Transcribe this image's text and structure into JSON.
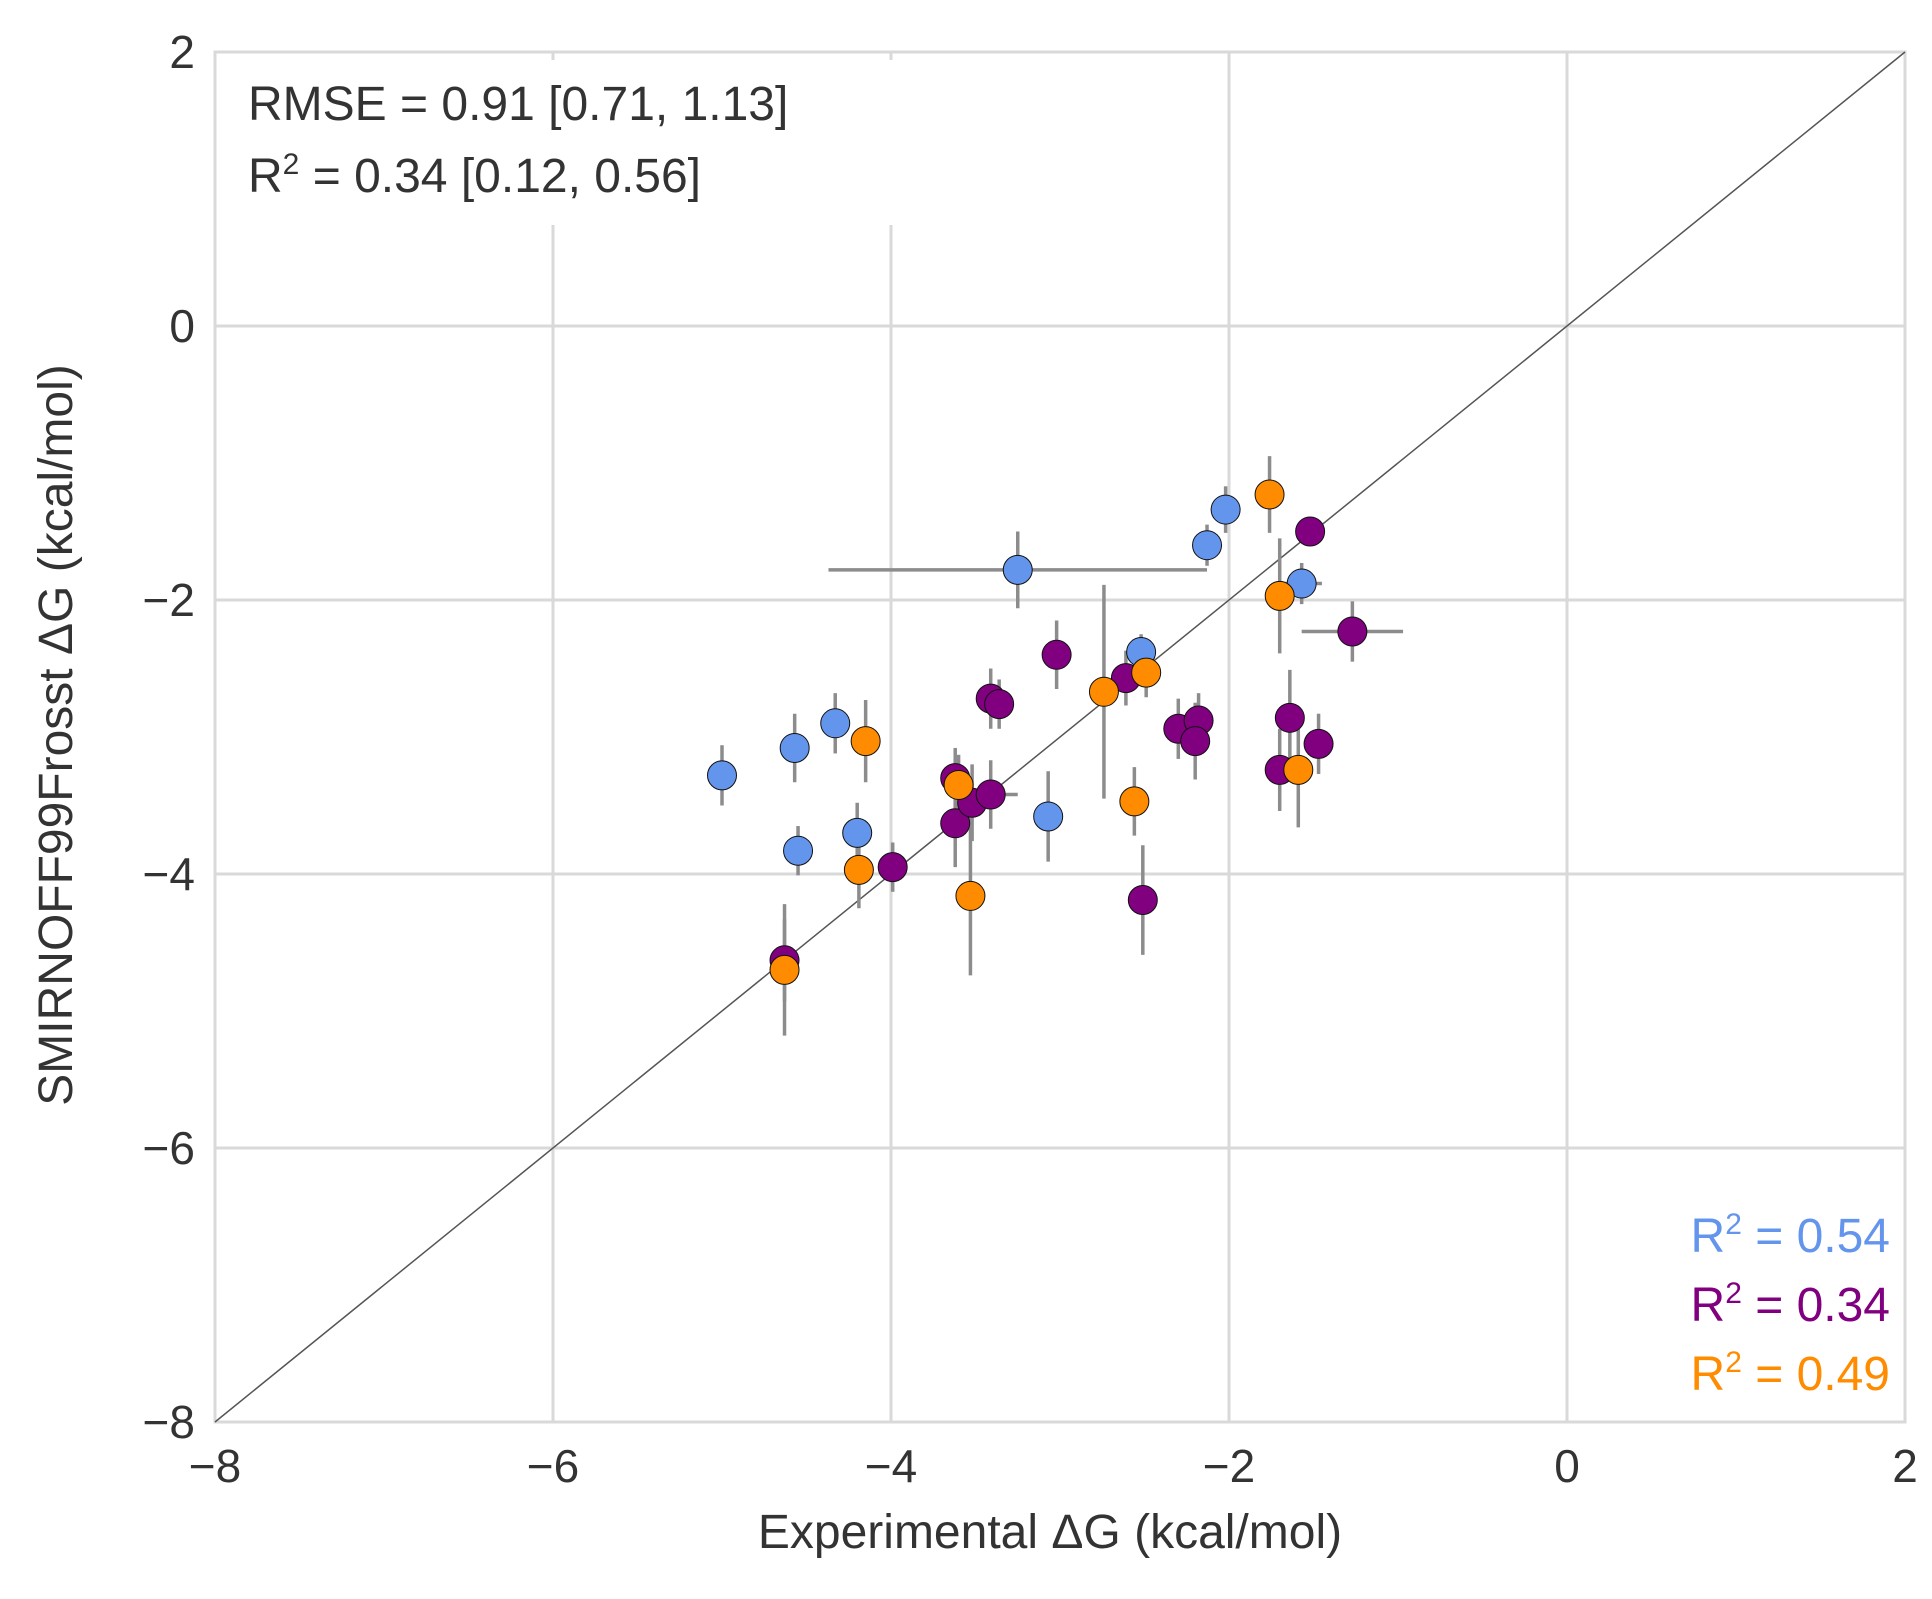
{
  "chart_data": {
    "type": "scatter",
    "xlabel": "Experimental ΔG (kcal/mol)",
    "ylabel": "SMIRNOFF99Frosst ΔG (kcal/mol)",
    "xlim": [
      -8,
      2
    ],
    "ylim": [
      -8,
      2
    ],
    "x_ticks": [
      -8,
      -6,
      -4,
      -2,
      0,
      2
    ],
    "y_ticks": [
      -8,
      -6,
      -4,
      -2,
      0,
      2
    ],
    "x_tick_labels": [
      "−8",
      "−6",
      "−4",
      "−2",
      "0",
      "2"
    ],
    "y_tick_labels": [
      "−8",
      "−6",
      "−4",
      "−2",
      "0",
      "2"
    ],
    "grid": true,
    "identity_line": true,
    "annotations": {
      "rmse_text": "RMSE = 0.91 [0.71, 1.13]",
      "r2_prefix": "R",
      "r2_sup": "2",
      "r2_text": " = 0.34 [0.12, 0.56]"
    },
    "legend_placement": "bottom-right",
    "series": [
      {
        "color": "#6495ED",
        "legend_prefix": "R",
        "legend_sup": "2",
        "legend_value": " = 0.54",
        "points": [
          {
            "x": -5.0,
            "y": -3.28,
            "xerr": 0.0,
            "yerr": 0.22
          },
          {
            "x": -4.57,
            "y": -3.08,
            "xerr": 0.0,
            "yerr": 0.25
          },
          {
            "x": -4.33,
            "y": -2.9,
            "xerr": 0.0,
            "yerr": 0.22
          },
          {
            "x": -4.55,
            "y": -3.83,
            "xerr": 0.0,
            "yerr": 0.18
          },
          {
            "x": -4.2,
            "y": -3.7,
            "xerr": 0.0,
            "yerr": 0.22
          },
          {
            "x": -3.25,
            "y": -1.78,
            "xerr": 1.12,
            "yerr": 0.28
          },
          {
            "x": -3.07,
            "y": -3.58,
            "xerr": 0.0,
            "yerr": 0.33
          },
          {
            "x": -2.52,
            "y": -2.38,
            "xerr": 0.0,
            "yerr": 0.13
          },
          {
            "x": -2.13,
            "y": -1.6,
            "xerr": 0.0,
            "yerr": 0.15
          },
          {
            "x": -2.02,
            "y": -1.34,
            "xerr": 0.0,
            "yerr": 0.17
          },
          {
            "x": -1.57,
            "y": -1.88,
            "xerr": 0.12,
            "yerr": 0.15
          }
        ]
      },
      {
        "color": "#800080",
        "legend_prefix": "R",
        "legend_sup": "2",
        "legend_value": " = 0.34",
        "points": [
          {
            "x": -4.63,
            "y": -4.63,
            "xerr": 0.0,
            "yerr": 0.3
          },
          {
            "x": -3.99,
            "y": -3.95,
            "xerr": 0.0,
            "yerr": 0.18
          },
          {
            "x": -3.62,
            "y": -3.3,
            "xerr": 0.0,
            "yerr": 0.22
          },
          {
            "x": -3.62,
            "y": -3.63,
            "xerr": 0.0,
            "yerr": 0.32
          },
          {
            "x": -3.52,
            "y": -3.48,
            "xerr": 0.0,
            "yerr": 0.28
          },
          {
            "x": -3.41,
            "y": -3.42,
            "xerr": 0.16,
            "yerr": 0.25
          },
          {
            "x": -3.41,
            "y": -2.72,
            "xerr": 0.0,
            "yerr": 0.22
          },
          {
            "x": -3.36,
            "y": -2.76,
            "xerr": 0.0,
            "yerr": 0.18
          },
          {
            "x": -3.02,
            "y": -2.4,
            "xerr": 0.0,
            "yerr": 0.25
          },
          {
            "x": -2.61,
            "y": -2.57,
            "xerr": 0.0,
            "yerr": 0.2
          },
          {
            "x": -2.51,
            "y": -4.19,
            "xerr": 0.0,
            "yerr": 0.4
          },
          {
            "x": -2.3,
            "y": -2.94,
            "xerr": 0.0,
            "yerr": 0.22
          },
          {
            "x": -2.18,
            "y": -2.88,
            "xerr": 0.0,
            "yerr": 0.2
          },
          {
            "x": -2.2,
            "y": -3.03,
            "xerr": 0.0,
            "yerr": 0.28
          },
          {
            "x": -1.7,
            "y": -3.24,
            "xerr": 0.0,
            "yerr": 0.3
          },
          {
            "x": -1.64,
            "y": -2.86,
            "xerr": 0.0,
            "yerr": 0.35
          },
          {
            "x": -1.52,
            "y": -1.5,
            "xerr": 0.0,
            "yerr": 0.08
          },
          {
            "x": -1.47,
            "y": -3.05,
            "xerr": 0.0,
            "yerr": 0.22
          },
          {
            "x": -1.27,
            "y": -2.23,
            "xerr": 0.3,
            "yerr": 0.22
          }
        ]
      },
      {
        "color": "#FF8C00",
        "legend_prefix": "R",
        "legend_sup": "2",
        "legend_value": " = 0.49",
        "points": [
          {
            "x": -4.63,
            "y": -4.7,
            "xerr": 0.0,
            "yerr": 0.48
          },
          {
            "x": -4.19,
            "y": -3.97,
            "xerr": 0.0,
            "yerr": 0.28
          },
          {
            "x": -4.15,
            "y": -3.03,
            "xerr": 0.0,
            "yerr": 0.3
          },
          {
            "x": -3.6,
            "y": -3.35,
            "xerr": 0.0,
            "yerr": 0.22
          },
          {
            "x": -3.53,
            "y": -4.16,
            "xerr": 0.0,
            "yerr": 0.58
          },
          {
            "x": -2.74,
            "y": -2.67,
            "xerr": 0.0,
            "yerr": 0.78
          },
          {
            "x": -2.56,
            "y": -3.47,
            "xerr": 0.0,
            "yerr": 0.25
          },
          {
            "x": -2.49,
            "y": -2.53,
            "xerr": 0.0,
            "yerr": 0.18
          },
          {
            "x": -1.76,
            "y": -1.23,
            "xerr": 0.0,
            "yerr": 0.28
          },
          {
            "x": -1.7,
            "y": -1.97,
            "xerr": 0.0,
            "yerr": 0.42
          },
          {
            "x": -1.59,
            "y": -3.24,
            "xerr": 0.0,
            "yerr": 0.42
          }
        ]
      }
    ]
  }
}
